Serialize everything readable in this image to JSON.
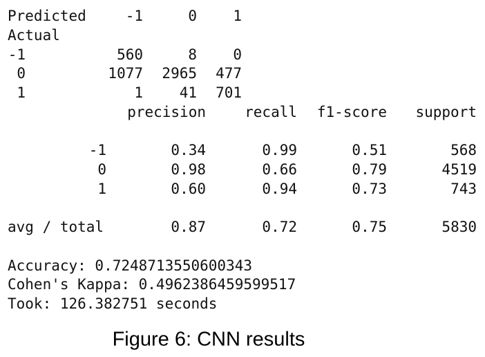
{
  "confusion_matrix": {
    "corner": "Predicted",
    "columns": [
      "-1",
      "0",
      "1"
    ],
    "row_header": "Actual",
    "rows": [
      {
        "label": "-1",
        "values": [
          "560",
          "8",
          "0"
        ]
      },
      {
        "label": "0",
        "values": [
          "1077",
          "2965",
          "477"
        ]
      },
      {
        "label": "1",
        "values": [
          "1",
          "41",
          "701"
        ]
      }
    ]
  },
  "report": {
    "columns": [
      "precision",
      "recall",
      "f1-score",
      "support"
    ],
    "rows": [
      {
        "label": "-1",
        "values": [
          "0.34",
          "0.99",
          "0.51",
          "568"
        ]
      },
      {
        "label": "0",
        "values": [
          "0.98",
          "0.66",
          "0.79",
          "4519"
        ]
      },
      {
        "label": "1",
        "values": [
          "0.60",
          "0.94",
          "0.73",
          "743"
        ]
      }
    ],
    "total": {
      "label": "avg / total",
      "values": [
        "0.87",
        "0.72",
        "0.75",
        "5830"
      ]
    }
  },
  "metrics": [
    "Accuracy: 0.7248713550600343",
    "Cohen's Kappa: 0.4962386459599517",
    "Took: 126.382751 seconds"
  ],
  "caption": "Figure 6: CNN results"
}
